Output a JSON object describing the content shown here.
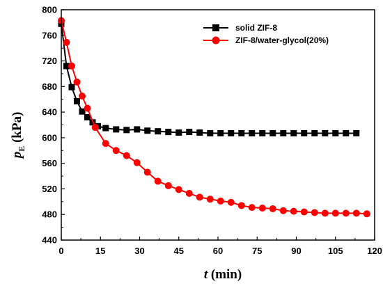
{
  "chart_data": {
    "type": "line",
    "title": "",
    "xlabel_var": "t",
    "xlabel_unit": " (min)",
    "ylabel_var": "p",
    "ylabel_sub": "E",
    "ylabel_unit": " (kPa)",
    "xlim": [
      0,
      120
    ],
    "ylim": [
      440,
      800
    ],
    "xticks": [
      0,
      15,
      30,
      45,
      60,
      75,
      90,
      105,
      120
    ],
    "yticks": [
      440,
      480,
      520,
      560,
      600,
      640,
      680,
      720,
      760,
      800
    ],
    "grid": false,
    "legend_position": "top-right",
    "series": [
      {
        "name": "solid ZIF-8",
        "color": "#000000",
        "marker": "square",
        "points": [
          [
            0,
            778
          ],
          [
            2,
            712
          ],
          [
            4,
            679
          ],
          [
            6,
            657
          ],
          [
            8,
            641
          ],
          [
            10,
            632
          ],
          [
            12,
            624
          ],
          [
            14,
            618
          ],
          [
            17,
            615
          ],
          [
            21,
            613
          ],
          [
            25,
            612
          ],
          [
            29,
            613
          ],
          [
            33,
            611
          ],
          [
            37,
            610
          ],
          [
            41,
            609
          ],
          [
            45,
            608
          ],
          [
            49,
            609
          ],
          [
            53,
            608
          ],
          [
            57,
            607
          ],
          [
            61,
            607
          ],
          [
            65,
            607
          ],
          [
            69,
            607
          ],
          [
            73,
            607
          ],
          [
            77,
            607
          ],
          [
            81,
            607
          ],
          [
            85,
            607
          ],
          [
            89,
            607
          ],
          [
            93,
            607
          ],
          [
            97,
            607
          ],
          [
            101,
            607
          ],
          [
            105,
            607
          ],
          [
            109,
            607
          ],
          [
            113,
            607
          ]
        ]
      },
      {
        "name": "ZIF-8/water-glycol(20%)",
        "color": "#ff0000",
        "marker": "circle",
        "points": [
          [
            0,
            783
          ],
          [
            2,
            749
          ],
          [
            4,
            712
          ],
          [
            6,
            687
          ],
          [
            8,
            665
          ],
          [
            10,
            646
          ],
          [
            13,
            616
          ],
          [
            17,
            591
          ],
          [
            21,
            580
          ],
          [
            25,
            572
          ],
          [
            29,
            561
          ],
          [
            33,
            546
          ],
          [
            37,
            532
          ],
          [
            41,
            525
          ],
          [
            45,
            519
          ],
          [
            49,
            513
          ],
          [
            53,
            507
          ],
          [
            57,
            504
          ],
          [
            61,
            501
          ],
          [
            65,
            499
          ],
          [
            69,
            494
          ],
          [
            73,
            491
          ],
          [
            77,
            490
          ],
          [
            81,
            489
          ],
          [
            85,
            486
          ],
          [
            89,
            485
          ],
          [
            93,
            484
          ],
          [
            97,
            483
          ],
          [
            101,
            482
          ],
          [
            105,
            482
          ],
          [
            109,
            482
          ],
          [
            113,
            482
          ],
          [
            117,
            481
          ]
        ]
      }
    ]
  }
}
